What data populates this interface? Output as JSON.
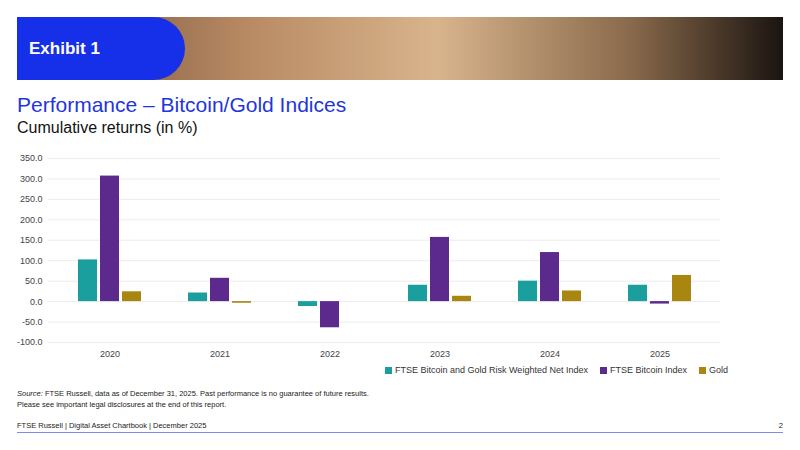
{
  "exhibit": "Exhibit 1",
  "source_label": "Source:",
  "source": "FTSE Russell, data as of December 31, 2025. Past performance is no guarantee of future results.",
  "disclaimer": "Please see important legal disclosures at the end of this report.",
  "footer": "FTSE Russell | Digital Asset Chartbook | December 2025",
  "page": "2",
  "chart_data": {
    "type": "bar",
    "title": "Performance – Bitcoin/Gold Indices",
    "subtitle": "Cumulative returns (in %)",
    "categories": [
      "2020",
      "2021",
      "2022",
      "2023",
      "2024",
      "2025"
    ],
    "series": [
      {
        "name": "FTSE Bitcoin and Gold Risk Weighted Net Index",
        "color": "#1a9e9e",
        "values": [
          102,
          21,
          -12,
          40,
          50,
          40
        ]
      },
      {
        "name": "FTSE Bitcoin Index",
        "color": "#5b2a8c",
        "values": [
          307,
          57,
          -64,
          157,
          120,
          -6
        ]
      },
      {
        "name": "Gold",
        "color": "#a8860f",
        "values": [
          24,
          -4,
          0,
          13,
          26,
          64
        ]
      }
    ],
    "ylim": [
      -100,
      350
    ],
    "yticks": [
      {
        "value": -100,
        "label": "-100.0"
      },
      {
        "value": -50,
        "label": "-50.0"
      },
      {
        "value": 0,
        "label": "0.0"
      },
      {
        "value": 50,
        "label": "50.0"
      },
      {
        "value": 100,
        "label": "100.0"
      },
      {
        "value": 150,
        "label": "150.0"
      },
      {
        "value": 200,
        "label": "200.0"
      },
      {
        "value": 250,
        "label": "250.0"
      },
      {
        "value": 300,
        "label": "300.0"
      },
      {
        "value": 350,
        "label": "350.0"
      }
    ],
    "grid": true,
    "legend": "bottom"
  }
}
